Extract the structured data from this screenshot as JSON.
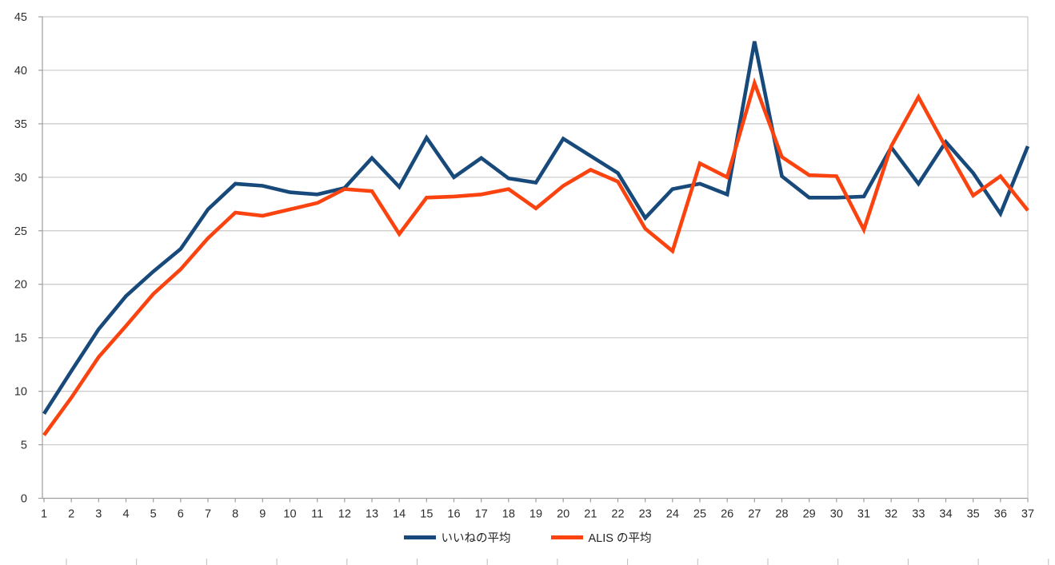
{
  "chart_data": {
    "type": "line",
    "title": "",
    "xlabel": "",
    "ylabel": "",
    "x_categories": [
      "1",
      "2",
      "3",
      "4",
      "5",
      "6",
      "7",
      "8",
      "9",
      "10",
      "11",
      "12",
      "13",
      "14",
      "15",
      "16",
      "17",
      "18",
      "19",
      "20",
      "21",
      "22",
      "23",
      "24",
      "25",
      "26",
      "27",
      "28",
      "29",
      "30",
      "31",
      "32",
      "33",
      "34",
      "35",
      "36",
      "37"
    ],
    "series": [
      {
        "name": "いいねの平均",
        "color": "#17497a",
        "values": [
          7.9,
          11.9,
          15.8,
          18.9,
          21.2,
          23.3,
          27.0,
          29.4,
          29.2,
          28.6,
          28.4,
          29.0,
          31.8,
          29.1,
          33.7,
          30.0,
          31.8,
          29.9,
          29.5,
          33.6,
          32.0,
          30.4,
          26.2,
          28.9,
          29.4,
          28.4,
          42.7,
          30.1,
          28.1,
          28.1,
          28.2,
          32.8,
          29.4,
          33.3,
          30.4,
          26.6,
          32.9
        ]
      },
      {
        "name": "ALIS の平均",
        "color": "#fb4310",
        "values": [
          5.9,
          9.4,
          13.2,
          16.1,
          19.1,
          21.4,
          24.3,
          26.7,
          26.4,
          27.0,
          27.6,
          28.9,
          28.7,
          24.7,
          28.1,
          28.2,
          28.4,
          28.9,
          27.1,
          29.2,
          30.7,
          29.6,
          25.2,
          23.1,
          31.3,
          30.0,
          38.8,
          31.9,
          30.2,
          30.1,
          25.1,
          32.9,
          37.5,
          32.8,
          28.3,
          30.1,
          26.9
        ]
      }
    ],
    "ylim": [
      0,
      45
    ],
    "y_ticks": [
      0,
      5,
      10,
      15,
      20,
      25,
      30,
      35,
      40,
      45
    ],
    "grid": true,
    "legend_position": "bottom"
  },
  "colors": {
    "background": "#ffffff",
    "gridline": "#c9c9c9",
    "axis": "#9e9e9e",
    "tick_label": "#2e2e2e",
    "series1": "#17497a",
    "series2": "#fb4310"
  }
}
